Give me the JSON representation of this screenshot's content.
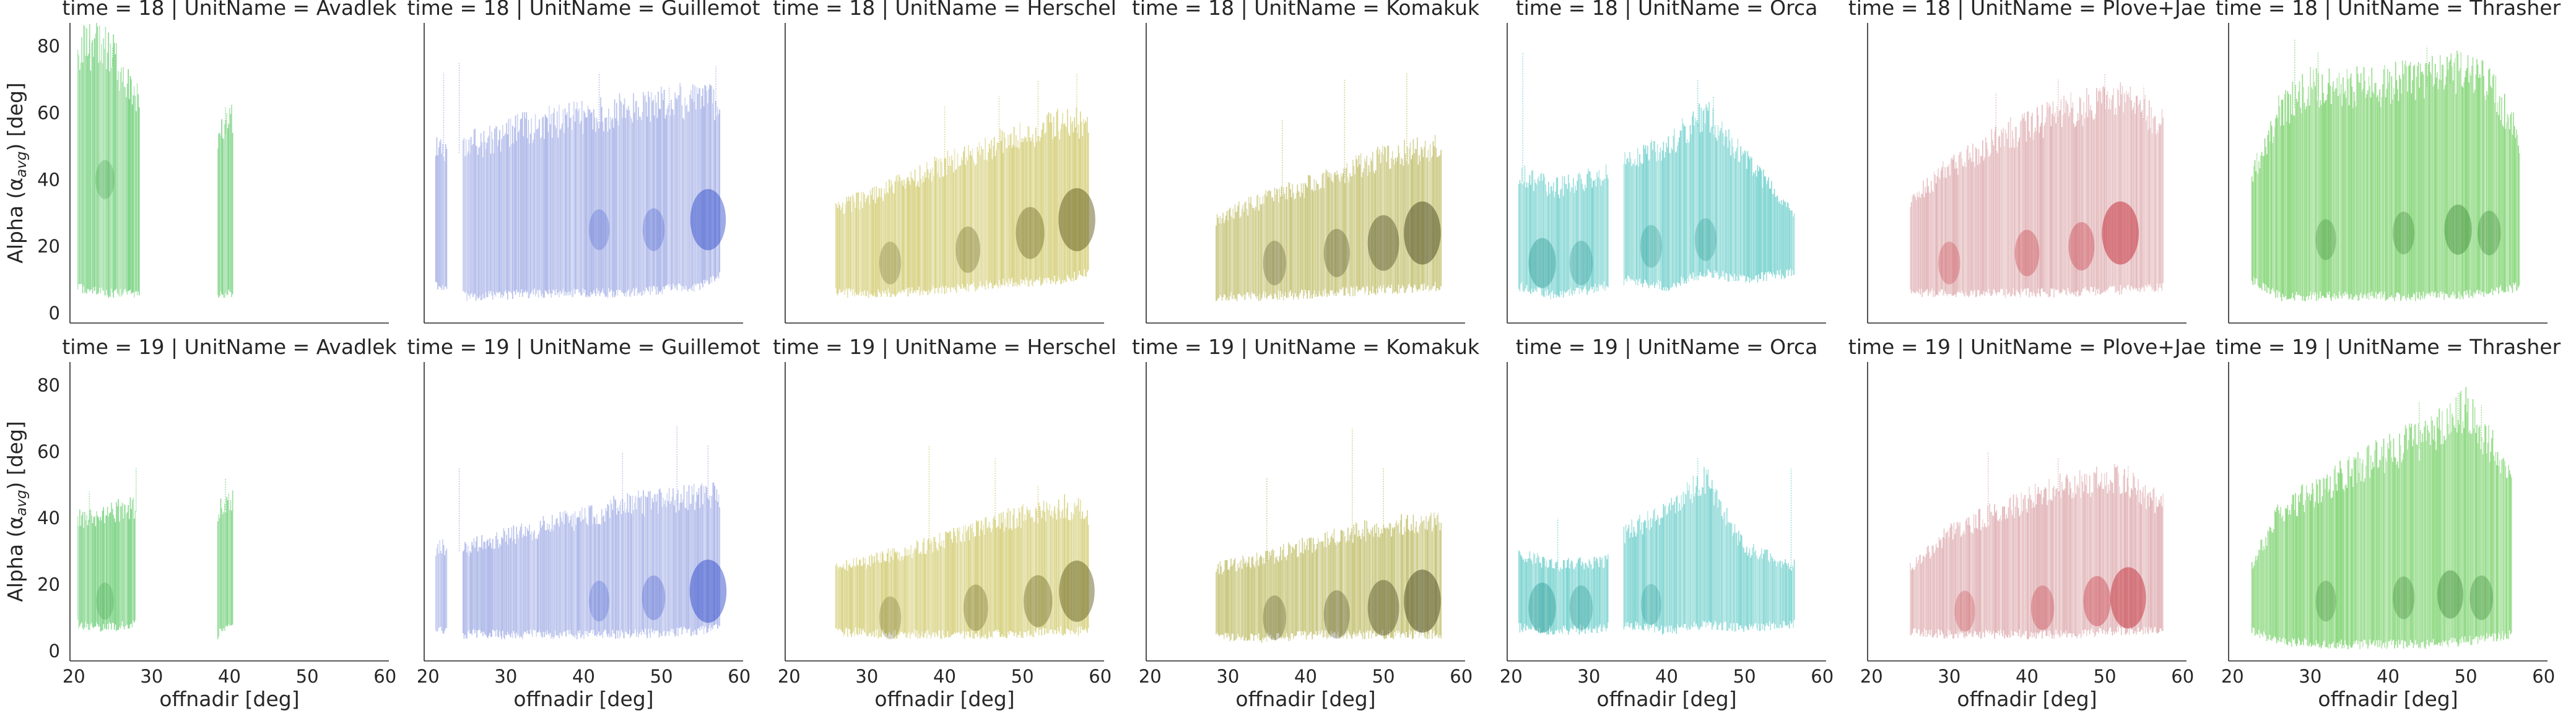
{
  "figure": {
    "x_label": "offnadir [deg]",
    "y_label": "Alpha (αavg) [deg]",
    "y_label_main": "Alpha (α",
    "y_label_sub": "avg",
    "y_label_end": ") [deg]"
  },
  "chart_data": {
    "type": "scatter",
    "facet_rows": [
      "time = 18",
      "time = 19"
    ],
    "facet_cols": [
      "UnitName = Avadlek",
      "UnitName = Guillemot",
      "UnitName = Herschel",
      "UnitName = Komakuk",
      "UnitName = Orca",
      "UnitName = Plove+Jae",
      "UnitName = Thrasher"
    ],
    "xlim": [
      19.5,
      60.5
    ],
    "ylim": [
      -3,
      87
    ],
    "x_ticks": [
      20,
      30,
      40,
      50,
      60
    ],
    "y_ticks": [
      0,
      20,
      40,
      60,
      80
    ],
    "grid": false,
    "panels": [
      {
        "title": "time = 18 | UnitName = Avadlek",
        "color": "#4fc45a",
        "dark": "#1f8a2e",
        "segments": [
          [
            20.5,
            28.5
          ],
          [
            38.5,
            40.5
          ]
        ],
        "band": [
          [
            20,
            8,
            75
          ],
          [
            24,
            6,
            78
          ],
          [
            28,
            6,
            62
          ],
          [
            38,
            6,
            50
          ],
          [
            40,
            6,
            55
          ]
        ],
        "cores": [
          [
            24,
            40,
            0.25
          ]
        ],
        "spikes": [
          [
            22,
            82
          ],
          [
            25,
            80
          ],
          [
            39.5,
            62
          ]
        ]
      },
      {
        "title": "time = 18 | UnitName = Guillemot",
        "color": "#8f9de0",
        "dark": "#2a46c8",
        "segments": [
          [
            21,
            22.5
          ],
          [
            24.5,
            57.5
          ]
        ],
        "band": [
          [
            21,
            8,
            48
          ],
          [
            25,
            5,
            48
          ],
          [
            35,
            6,
            55
          ],
          [
            45,
            6,
            58
          ],
          [
            55,
            8,
            62
          ],
          [
            57.5,
            12,
            60
          ]
        ],
        "cores": [
          [
            42,
            25,
            0.3
          ],
          [
            49,
            25,
            0.35
          ],
          [
            56,
            28,
            0.85
          ]
        ],
        "spikes": [
          [
            22,
            72
          ],
          [
            24,
            75
          ],
          [
            42,
            72
          ],
          [
            51,
            68
          ],
          [
            57,
            74
          ]
        ]
      },
      {
        "title": "time = 18 | UnitName = Herschel",
        "color": "#c8c050",
        "dark": "#5a5512",
        "segments": [
          [
            26,
            58.5
          ]
        ],
        "band": [
          [
            26,
            6,
            30
          ],
          [
            32,
            6,
            35
          ],
          [
            40,
            7,
            43
          ],
          [
            48,
            9,
            50
          ],
          [
            55,
            10,
            55
          ],
          [
            58.5,
            12,
            55
          ]
        ],
        "cores": [
          [
            33,
            15,
            0.35
          ],
          [
            43,
            19,
            0.45
          ],
          [
            51,
            24,
            0.6
          ],
          [
            57,
            28,
            0.9
          ]
        ],
        "spikes": [
          [
            40,
            62
          ],
          [
            47,
            65
          ],
          [
            52,
            70
          ],
          [
            57,
            72
          ]
        ]
      },
      {
        "title": "time = 18 | UnitName = Komakuk",
        "color": "#b3b048",
        "dark": "#40401a",
        "segments": [
          [
            28.5,
            57.5
          ]
        ],
        "band": [
          [
            28.5,
            5,
            27
          ],
          [
            35,
            5,
            33
          ],
          [
            42,
            6,
            38
          ],
          [
            50,
            7,
            45
          ],
          [
            57.5,
            8,
            48
          ]
        ],
        "cores": [
          [
            36,
            15,
            0.4
          ],
          [
            44,
            18,
            0.5
          ],
          [
            50,
            21,
            0.7
          ],
          [
            55,
            24,
            0.9
          ]
        ],
        "spikes": [
          [
            37,
            58
          ],
          [
            45,
            70
          ],
          [
            53,
            72
          ]
        ]
      },
      {
        "title": "time = 18 | UnitName = Orca",
        "color": "#4cc4c0",
        "dark": "#128a85",
        "segments": [
          [
            21,
            32.5
          ],
          [
            34.5,
            56.5
          ]
        ],
        "band": [
          [
            21,
            8,
            40
          ],
          [
            26,
            5,
            36
          ],
          [
            32,
            8,
            40
          ],
          [
            35,
            10,
            45
          ],
          [
            40,
            8,
            48
          ],
          [
            45,
            12,
            58
          ],
          [
            50,
            10,
            45
          ],
          [
            56,
            12,
            30
          ]
        ],
        "cores": [
          [
            24,
            15,
            0.55
          ],
          [
            29,
            15,
            0.4
          ],
          [
            38,
            20,
            0.35
          ],
          [
            45,
            22,
            0.35
          ]
        ],
        "spikes": [
          [
            21.5,
            78
          ],
          [
            44,
            70
          ],
          [
            46,
            65
          ]
        ]
      },
      {
        "title": "time = 18 | UnitName = Plove+Jae",
        "color": "#d79a9e",
        "dark": "#c0202b",
        "segments": [
          [
            25,
            57.5
          ]
        ],
        "band": [
          [
            25,
            6,
            32
          ],
          [
            30,
            6,
            42
          ],
          [
            38,
            6,
            52
          ],
          [
            45,
            6,
            58
          ],
          [
            52,
            7,
            62
          ],
          [
            57.5,
            8,
            55
          ]
        ],
        "cores": [
          [
            30,
            15,
            0.35
          ],
          [
            40,
            18,
            0.45
          ],
          [
            47,
            20,
            0.5
          ],
          [
            52,
            24,
            0.9
          ]
        ],
        "spikes": [
          [
            36,
            66
          ],
          [
            44,
            70
          ],
          [
            50,
            72
          ],
          [
            55,
            68
          ]
        ]
      },
      {
        "title": "time = 18 | UnitName = Thrasher",
        "color": "#5cc84a",
        "dark": "#1e6e18",
        "segments": [
          [
            22.5,
            57
          ]
        ],
        "band": [
          [
            22.5,
            10,
            40
          ],
          [
            26,
            5,
            58
          ],
          [
            30,
            5,
            65
          ],
          [
            38,
            5,
            65
          ],
          [
            45,
            5,
            68
          ],
          [
            52,
            6,
            70
          ],
          [
            57,
            8,
            50
          ]
        ],
        "cores": [
          [
            32,
            22,
            0.3
          ],
          [
            42,
            24,
            0.35
          ],
          [
            49,
            25,
            0.55
          ],
          [
            53,
            24,
            0.4
          ]
        ],
        "spikes": [
          [
            28,
            82
          ],
          [
            31,
            78
          ],
          [
            45,
            80
          ],
          [
            48,
            76
          ]
        ]
      },
      {
        "title": "time = 19 | UnitName = Avadlek",
        "color": "#4fc45a",
        "dark": "#1f8a2e",
        "segments": [
          [
            20.5,
            28
          ],
          [
            38.5,
            40.5
          ]
        ],
        "band": [
          [
            20.5,
            8,
            38
          ],
          [
            24,
            7,
            40
          ],
          [
            28,
            8,
            42
          ],
          [
            38.5,
            5,
            40
          ],
          [
            40.5,
            8,
            45
          ]
        ],
        "cores": [
          [
            24,
            15,
            0.2
          ]
        ],
        "spikes": [
          [
            22,
            48
          ],
          [
            28,
            55
          ],
          [
            39.5,
            52
          ]
        ]
      },
      {
        "title": "time = 19 | UnitName = Guillemot",
        "color": "#8f9de0",
        "dark": "#2a46c8",
        "segments": [
          [
            21,
            22.5
          ],
          [
            24.5,
            57.5
          ]
        ],
        "band": [
          [
            21,
            6,
            30
          ],
          [
            25,
            5,
            30
          ],
          [
            35,
            5,
            36
          ],
          [
            45,
            5,
            42
          ],
          [
            55,
            6,
            45
          ],
          [
            57.5,
            8,
            45
          ]
        ],
        "cores": [
          [
            42,
            15,
            0.3
          ],
          [
            49,
            16,
            0.4
          ],
          [
            56,
            18,
            0.9
          ]
        ],
        "spikes": [
          [
            24,
            55
          ],
          [
            45,
            60
          ],
          [
            52,
            68
          ],
          [
            56,
            62
          ]
        ]
      },
      {
        "title": "time = 19 | UnitName = Herschel",
        "color": "#c8c050",
        "dark": "#5a5512",
        "segments": [
          [
            26,
            58.5
          ]
        ],
        "band": [
          [
            26,
            6,
            24
          ],
          [
            32,
            5,
            27
          ],
          [
            40,
            5,
            32
          ],
          [
            48,
            5,
            38
          ],
          [
            55,
            6,
            42
          ],
          [
            58.5,
            6,
            40
          ]
        ],
        "cores": [
          [
            33,
            10,
            0.35
          ],
          [
            44,
            13,
            0.45
          ],
          [
            52,
            15,
            0.6
          ],
          [
            57,
            18,
            0.85
          ]
        ],
        "spikes": [
          [
            38,
            62
          ],
          [
            46.5,
            58
          ],
          [
            52,
            50
          ]
        ]
      },
      {
        "title": "time = 19 | UnitName = Komakuk",
        "color": "#b3b048",
        "dark": "#40401a",
        "segments": [
          [
            28.5,
            57.5
          ]
        ],
        "band": [
          [
            28.5,
            4,
            24
          ],
          [
            35,
            4,
            27
          ],
          [
            42,
            5,
            32
          ],
          [
            50,
            5,
            36
          ],
          [
            57.5,
            5,
            38
          ]
        ],
        "cores": [
          [
            36,
            10,
            0.4
          ],
          [
            44,
            11,
            0.5
          ],
          [
            50,
            13,
            0.7
          ],
          [
            55,
            15,
            0.9
          ]
        ],
        "spikes": [
          [
            35,
            52
          ],
          [
            46,
            67
          ],
          [
            50,
            55
          ]
        ]
      },
      {
        "title": "time = 19 | UnitName = Orca",
        "color": "#4cc4c0",
        "dark": "#128a85",
        "segments": [
          [
            21,
            32.5
          ],
          [
            34.5,
            56.5
          ]
        ],
        "band": [
          [
            21,
            7,
            28
          ],
          [
            26,
            6,
            25
          ],
          [
            32,
            7,
            26
          ],
          [
            35,
            8,
            35
          ],
          [
            40,
            6,
            40
          ],
          [
            45,
            8,
            50
          ],
          [
            50,
            7,
            30
          ],
          [
            56,
            8,
            25
          ]
        ],
        "cores": [
          [
            24,
            13,
            0.55
          ],
          [
            29,
            13,
            0.4
          ],
          [
            38,
            14,
            0.3
          ]
        ],
        "spikes": [
          [
            26,
            40
          ],
          [
            44,
            58
          ],
          [
            56,
            55
          ]
        ]
      },
      {
        "title": "time = 19 | UnitName = Plove+Jae",
        "color": "#d79a9e",
        "dark": "#c0202b",
        "segments": [
          [
            25,
            57.5
          ]
        ],
        "band": [
          [
            25,
            6,
            24
          ],
          [
            30,
            5,
            34
          ],
          [
            38,
            5,
            42
          ],
          [
            45,
            5,
            48
          ],
          [
            52,
            6,
            50
          ],
          [
            57.5,
            6,
            42
          ]
        ],
        "cores": [
          [
            32,
            12,
            0.3
          ],
          [
            42,
            13,
            0.4
          ],
          [
            49,
            15,
            0.55
          ],
          [
            53,
            16,
            0.85
          ]
        ],
        "spikes": [
          [
            35,
            60
          ],
          [
            44,
            58
          ],
          [
            53,
            56
          ]
        ]
      },
      {
        "title": "time = 19 | UnitName = Thrasher",
        "color": "#5cc84a",
        "dark": "#1e6e18",
        "segments": [
          [
            22.5,
            56
          ]
        ],
        "band": [
          [
            22.5,
            6,
            25
          ],
          [
            26,
            3,
            40
          ],
          [
            32,
            2,
            48
          ],
          [
            38,
            2,
            55
          ],
          [
            45,
            2,
            62
          ],
          [
            50,
            3,
            70
          ],
          [
            56,
            5,
            50
          ]
        ],
        "cores": [
          [
            32,
            15,
            0.3
          ],
          [
            42,
            16,
            0.35
          ],
          [
            48,
            17,
            0.5
          ],
          [
            52,
            16,
            0.4
          ]
        ],
        "spikes": [
          [
            44,
            75
          ],
          [
            49,
            78
          ],
          [
            52,
            74
          ]
        ]
      }
    ]
  }
}
